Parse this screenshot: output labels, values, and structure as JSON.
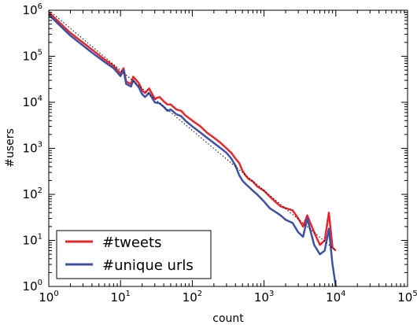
{
  "chart_data": {
    "type": "line",
    "xlabel": "count",
    "ylabel": "#users",
    "x_scale": "log",
    "y_scale": "log",
    "xlim": [
      1,
      100000
    ],
    "ylim": [
      1,
      1000000
    ],
    "x_ticks": [
      {
        "base": "10",
        "exp": "0",
        "value": 1
      },
      {
        "base": "10",
        "exp": "1",
        "value": 10
      },
      {
        "base": "10",
        "exp": "2",
        "value": 100
      },
      {
        "base": "10",
        "exp": "3",
        "value": 1000
      },
      {
        "base": "10",
        "exp": "4",
        "value": 10000
      },
      {
        "base": "10",
        "exp": "5",
        "value": 100000
      }
    ],
    "y_ticks": [
      {
        "base": "10",
        "exp": "0",
        "value": 1
      },
      {
        "base": "10",
        "exp": "1",
        "value": 10
      },
      {
        "base": "10",
        "exp": "2",
        "value": 100
      },
      {
        "base": "10",
        "exp": "3",
        "value": 1000
      },
      {
        "base": "10",
        "exp": "4",
        "value": 10000
      },
      {
        "base": "10",
        "exp": "5",
        "value": 100000
      },
      {
        "base": "10",
        "exp": "6",
        "value": 1000000
      }
    ],
    "grid": false,
    "legend_position": "bottom-left",
    "series": [
      {
        "name": "#tweets",
        "color": "#e8262d",
        "points": [
          [
            1,
            900000
          ],
          [
            2,
            320000
          ],
          [
            4,
            140000
          ],
          [
            6,
            85000
          ],
          [
            8,
            62000
          ],
          [
            10,
            42000
          ],
          [
            11,
            55000
          ],
          [
            12,
            28000
          ],
          [
            14,
            25000
          ],
          [
            15,
            36000
          ],
          [
            18,
            26000
          ],
          [
            20,
            18000
          ],
          [
            22,
            16000
          ],
          [
            25,
            20000
          ],
          [
            30,
            12000
          ],
          [
            35,
            13000
          ],
          [
            40,
            10500
          ],
          [
            45,
            9000
          ],
          [
            50,
            9000
          ],
          [
            60,
            7000
          ],
          [
            70,
            6500
          ],
          [
            80,
            5200
          ],
          [
            100,
            4000
          ],
          [
            130,
            3000
          ],
          [
            160,
            2200
          ],
          [
            200,
            1700
          ],
          [
            250,
            1300
          ],
          [
            300,
            1000
          ],
          [
            350,
            800
          ],
          [
            400,
            600
          ],
          [
            450,
            480
          ],
          [
            500,
            330
          ],
          [
            550,
            260
          ],
          [
            600,
            220
          ],
          [
            700,
            190
          ],
          [
            800,
            150
          ],
          [
            1000,
            120
          ],
          [
            1200,
            90
          ],
          [
            1500,
            65
          ],
          [
            1700,
            55
          ],
          [
            2000,
            50
          ],
          [
            2500,
            45
          ],
          [
            3000,
            30
          ],
          [
            3500,
            20
          ],
          [
            4000,
            35
          ],
          [
            5000,
            15
          ],
          [
            6000,
            8
          ],
          [
            7000,
            10
          ],
          [
            8000,
            40
          ],
          [
            9000,
            7
          ],
          [
            10000,
            6
          ]
        ]
      },
      {
        "name": "#unique urls",
        "color": "#3f51a3",
        "points": [
          [
            1,
            800000
          ],
          [
            2,
            280000
          ],
          [
            4,
            120000
          ],
          [
            6,
            75000
          ],
          [
            8,
            55000
          ],
          [
            10,
            37000
          ],
          [
            11,
            50000
          ],
          [
            12,
            25000
          ],
          [
            14,
            22000
          ],
          [
            15,
            30000
          ],
          [
            18,
            21000
          ],
          [
            20,
            15000
          ],
          [
            22,
            13000
          ],
          [
            25,
            16000
          ],
          [
            30,
            10000
          ],
          [
            35,
            9500
          ],
          [
            40,
            8000
          ],
          [
            45,
            6500
          ],
          [
            50,
            7000
          ],
          [
            60,
            5500
          ],
          [
            70,
            5000
          ],
          [
            80,
            4000
          ],
          [
            100,
            3000
          ],
          [
            130,
            2200
          ],
          [
            160,
            1700
          ],
          [
            200,
            1300
          ],
          [
            250,
            1000
          ],
          [
            300,
            800
          ],
          [
            350,
            600
          ],
          [
            400,
            420
          ],
          [
            450,
            260
          ],
          [
            500,
            200
          ],
          [
            550,
            170
          ],
          [
            600,
            150
          ],
          [
            700,
            120
          ],
          [
            800,
            100
          ],
          [
            1000,
            70
          ],
          [
            1200,
            50
          ],
          [
            1500,
            40
          ],
          [
            1700,
            35
          ],
          [
            2000,
            28
          ],
          [
            2500,
            24
          ],
          [
            3000,
            15
          ],
          [
            3500,
            12
          ],
          [
            4000,
            30
          ],
          [
            5000,
            8
          ],
          [
            6000,
            5
          ],
          [
            7000,
            6
          ],
          [
            8000,
            18
          ],
          [
            9000,
            3
          ],
          [
            10000,
            1
          ]
        ]
      },
      {
        "name": "",
        "style": "dotted",
        "color": "#000000",
        "points": [
          [
            1,
            1000000
          ],
          [
            10000,
            6
          ]
        ]
      }
    ]
  }
}
